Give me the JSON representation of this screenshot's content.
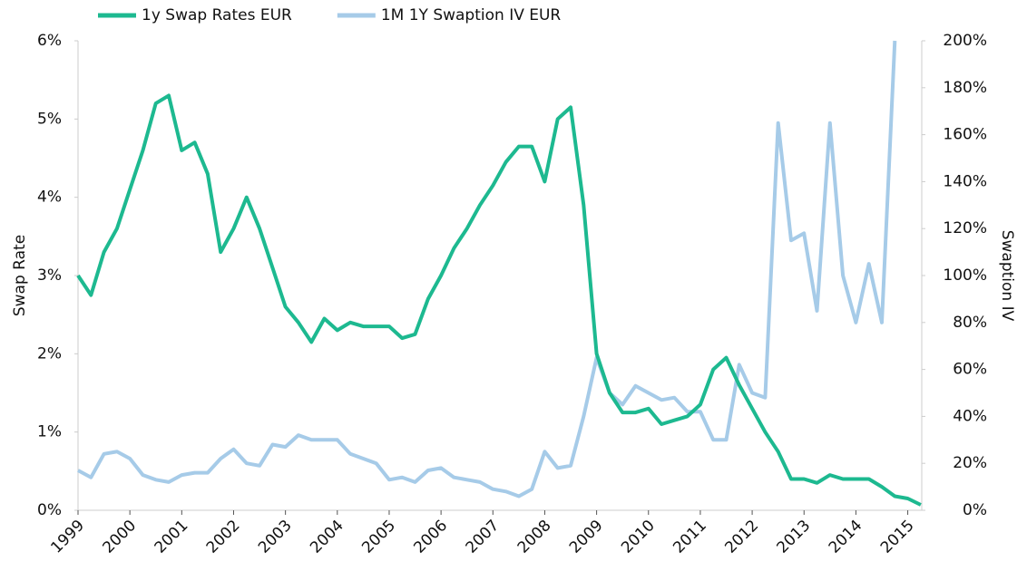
{
  "chart_data": {
    "type": "line",
    "x": [
      1999,
      1999.25,
      1999.5,
      1999.75,
      2000,
      2000.25,
      2000.5,
      2000.75,
      2001,
      2001.25,
      2001.5,
      2001.75,
      2002,
      2002.25,
      2002.5,
      2002.75,
      2003,
      2003.25,
      2003.5,
      2003.75,
      2004,
      2004.25,
      2004.5,
      2004.75,
      2005,
      2005.25,
      2005.5,
      2005.75,
      2006,
      2006.25,
      2006.5,
      2006.75,
      2007,
      2007.25,
      2007.5,
      2007.75,
      2008,
      2008.25,
      2008.5,
      2008.75,
      2009,
      2009.25,
      2009.5,
      2009.75,
      2010,
      2010.25,
      2010.5,
      2010.75,
      2011,
      2011.25,
      2011.5,
      2011.75,
      2012,
      2012.25,
      2012.5,
      2012.75,
      2013,
      2013.25,
      2013.5,
      2013.75,
      2014,
      2014.25,
      2014.5,
      2014.75,
      2015,
      2015.25
    ],
    "series": [
      {
        "name": "1y Swap Rates EUR",
        "color": "#1db990",
        "axis": "y",
        "values": [
          3.0,
          2.75,
          3.3,
          3.6,
          4.1,
          4.6,
          5.2,
          5.3,
          4.6,
          4.7,
          4.3,
          3.3,
          3.6,
          4.0,
          3.6,
          3.1,
          2.6,
          2.4,
          2.15,
          2.45,
          2.3,
          2.4,
          2.35,
          2.35,
          2.35,
          2.2,
          2.25,
          2.7,
          3.0,
          3.35,
          3.6,
          3.9,
          4.15,
          4.45,
          4.65,
          4.65,
          4.2,
          5.0,
          5.15,
          3.9,
          2.0,
          1.5,
          1.25,
          1.25,
          1.3,
          1.1,
          1.15,
          1.2,
          1.35,
          1.8,
          1.95,
          1.6,
          1.3,
          1.0,
          0.75,
          0.4,
          0.4,
          0.35,
          0.45,
          0.4,
          0.4,
          0.4,
          0.3,
          0.18,
          0.15,
          0.07
        ]
      },
      {
        "name": "1M 1Y Swaption IV EUR",
        "color": "#a6cbe8",
        "axis": "y2",
        "values": [
          17,
          14,
          24,
          25,
          22,
          15,
          13,
          12,
          15,
          16,
          16,
          22,
          26,
          20,
          19,
          28,
          27,
          32,
          30,
          30,
          30,
          24,
          22,
          20,
          13,
          14,
          12,
          17,
          18,
          14,
          13,
          12,
          9,
          8,
          6,
          9,
          25,
          18,
          19,
          40,
          65,
          50,
          45,
          53,
          50,
          47,
          48,
          42,
          42,
          30,
          30,
          62,
          50,
          48,
          165,
          115,
          118,
          85,
          165,
          100,
          80,
          105,
          80,
          200,
          null,
          null
        ]
      }
    ],
    "xlim": [
      1999,
      2015.27
    ],
    "xticks": [
      1999,
      2000,
      2001,
      2002,
      2003,
      2004,
      2005,
      2006,
      2007,
      2008,
      2009,
      2010,
      2011,
      2012,
      2013,
      2014,
      2015
    ],
    "ylabel": "Swap Rate",
    "ylim": [
      0,
      6
    ],
    "yticks": [
      {
        "value": 0,
        "label": "0%"
      },
      {
        "value": 1,
        "label": "1%"
      },
      {
        "value": 2,
        "label": "2%"
      },
      {
        "value": 3,
        "label": "3%"
      },
      {
        "value": 4,
        "label": "4%"
      },
      {
        "value": 5,
        "label": "5%"
      },
      {
        "value": 6,
        "label": "6%"
      }
    ],
    "y2label": "Swaption IV",
    "y2lim": [
      0,
      200
    ],
    "y2ticks": [
      {
        "value": 0,
        "label": "0%"
      },
      {
        "value": 20,
        "label": "20%"
      },
      {
        "value": 40,
        "label": "40%"
      },
      {
        "value": 60,
        "label": "60%"
      },
      {
        "value": 80,
        "label": "80%"
      },
      {
        "value": 100,
        "label": "100%"
      },
      {
        "value": 120,
        "label": "120%"
      },
      {
        "value": 140,
        "label": "140%"
      },
      {
        "value": 160,
        "label": "160%"
      },
      {
        "value": 180,
        "label": "180%"
      },
      {
        "value": 200,
        "label": "200%"
      }
    ]
  }
}
